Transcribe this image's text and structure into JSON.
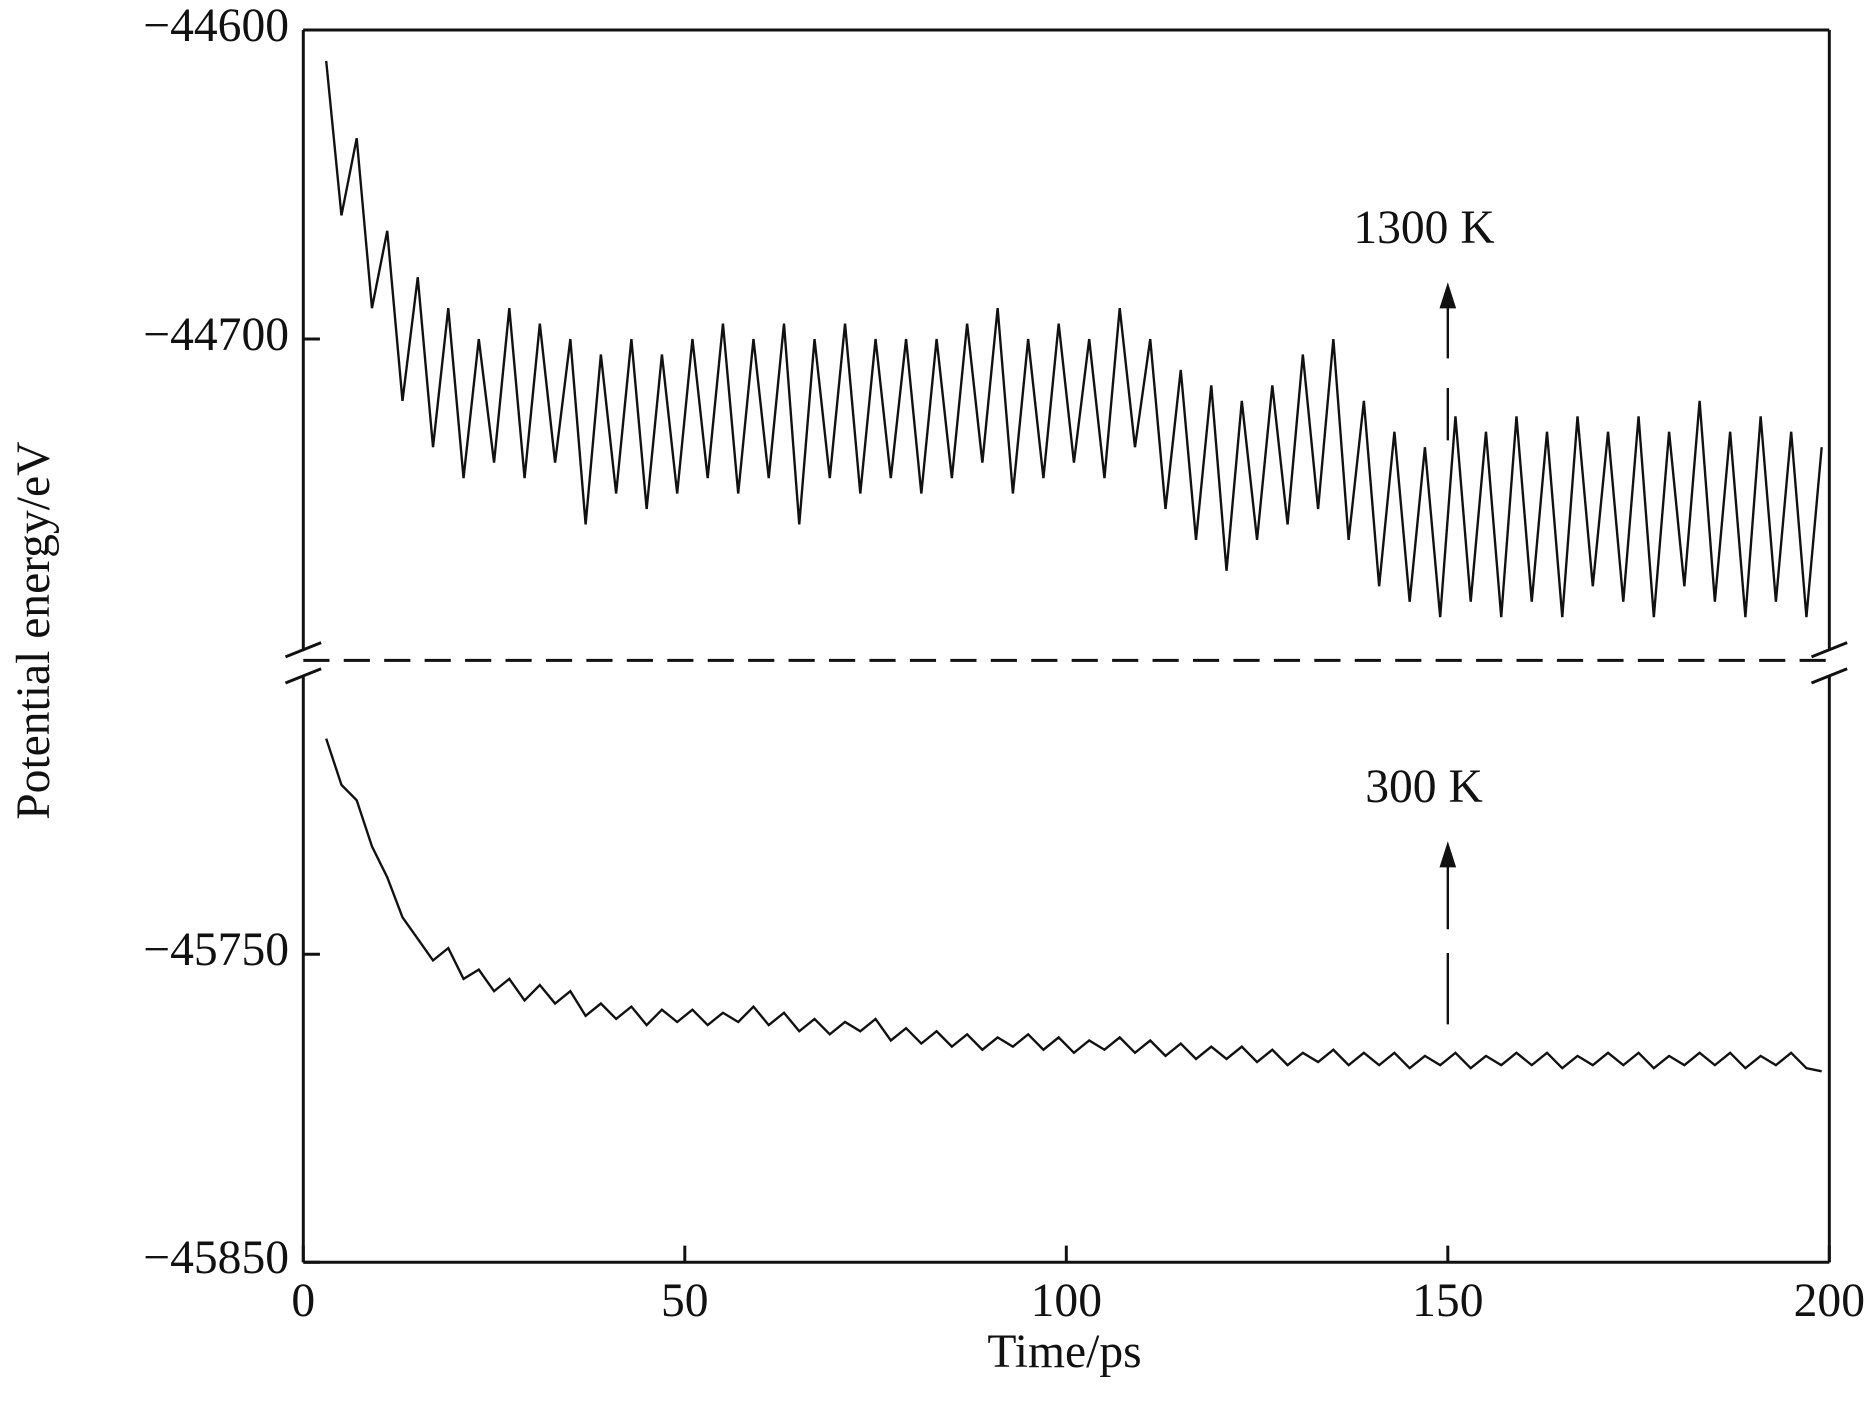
{
  "chart_data": {
    "type": "line",
    "xlabel": "Time/ps",
    "ylabel": "Potential energy/eV",
    "xlim": [
      0,
      200
    ],
    "xticks": [
      0,
      50,
      100,
      150,
      200
    ],
    "x": [
      3,
      5,
      7,
      9,
      11,
      13,
      15,
      17,
      19,
      21,
      23,
      25,
      27,
      29,
      31,
      33,
      35,
      37,
      39,
      41,
      43,
      45,
      47,
      49,
      51,
      53,
      55,
      57,
      59,
      61,
      63,
      65,
      67,
      69,
      71,
      73,
      75,
      77,
      79,
      81,
      83,
      85,
      87,
      89,
      91,
      93,
      95,
      97,
      99,
      101,
      103,
      105,
      107,
      109,
      111,
      113,
      115,
      117,
      119,
      121,
      123,
      125,
      127,
      129,
      131,
      133,
      135,
      137,
      139,
      141,
      143,
      145,
      147,
      149,
      151,
      153,
      155,
      157,
      159,
      161,
      163,
      165,
      167,
      169,
      171,
      173,
      175,
      177,
      179,
      181,
      183,
      185,
      187,
      189,
      191,
      193,
      195,
      197,
      199
    ],
    "panels": [
      {
        "ylim": [
          -44804,
          -44600
        ],
        "yticks": [
          {
            "value": -44600,
            "label": "−44600"
          },
          {
            "value": -44700,
            "label": "−44700"
          }
        ],
        "annotation": {
          "text": "1300 K",
          "x": 150
        },
        "series": [
          {
            "color": "#111111",
            "values": [
              -44610,
              -44660,
              -44635,
              -44690,
              -44665,
              -44720,
              -44680,
              -44735,
              -44690,
              -44745,
              -44700,
              -44740,
              -44690,
              -44745,
              -44695,
              -44740,
              -44700,
              -44760,
              -44705,
              -44750,
              -44700,
              -44755,
              -44705,
              -44750,
              -44700,
              -44745,
              -44695,
              -44750,
              -44700,
              -44745,
              -44695,
              -44760,
              -44700,
              -44745,
              -44695,
              -44750,
              -44700,
              -44745,
              -44700,
              -44750,
              -44700,
              -44745,
              -44695,
              -44740,
              -44690,
              -44750,
              -44700,
              -44745,
              -44695,
              -44740,
              -44700,
              -44745,
              -44690,
              -44735,
              -44700,
              -44755,
              -44710,
              -44765,
              -44715,
              -44775,
              -44720,
              -44765,
              -44715,
              -44760,
              -44705,
              -44755,
              -44700,
              -44765,
              -44720,
              -44780,
              -44730,
              -44785,
              -44735,
              -44790,
              -44725,
              -44785,
              -44730,
              -44790,
              -44725,
              -44785,
              -44730,
              -44790,
              -44725,
              -44780,
              -44730,
              -44785,
              -44725,
              -44790,
              -44730,
              -44780,
              -44720,
              -44785,
              -44730,
              -44790,
              -44725,
              -44785,
              -44730,
              -44790,
              -44735
            ]
          }
        ]
      },
      {
        "ylim": [
          -45850,
          -45655
        ],
        "yticks": [
          {
            "value": -45750,
            "label": "−45750"
          },
          {
            "value": -45850,
            "label": "−45850"
          }
        ],
        "annotation": {
          "text": "300 K",
          "x": 150
        },
        "series": [
          {
            "color": "#111111",
            "values": [
              -45680,
              -45695,
              -45700,
              -45715,
              -45725,
              -45738,
              -45745,
              -45752,
              -45748,
              -45758,
              -45755,
              -45762,
              -45758,
              -45765,
              -45760,
              -45766,
              -45762,
              -45770,
              -45766,
              -45771,
              -45767,
              -45773,
              -45768,
              -45772,
              -45768,
              -45773,
              -45769,
              -45772,
              -45767,
              -45773,
              -45769,
              -45775,
              -45771,
              -45776,
              -45772,
              -45775,
              -45771,
              -45778,
              -45774,
              -45779,
              -45775,
              -45780,
              -45776,
              -45781,
              -45777,
              -45780,
              -45776,
              -45781,
              -45777,
              -45782,
              -45778,
              -45781,
              -45777,
              -45782,
              -45778,
              -45783,
              -45779,
              -45784,
              -45780,
              -45784,
              -45780,
              -45785,
              -45781,
              -45786,
              -45782,
              -45785,
              -45781,
              -45786,
              -45782,
              -45786,
              -45782,
              -45787,
              -45783,
              -45786,
              -45782,
              -45787,
              -45783,
              -45786,
              -45782,
              -45786,
              -45782,
              -45787,
              -45783,
              -45786,
              -45782,
              -45786,
              -45782,
              -45787,
              -45783,
              -45786,
              -45782,
              -45786,
              -45782,
              -45787,
              -45783,
              -45786,
              -45782,
              -45787,
              -45788
            ]
          }
        ]
      }
    ]
  }
}
